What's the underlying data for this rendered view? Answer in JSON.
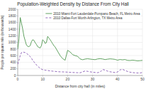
{
  "chart_data": {
    "type": "line",
    "title": "Population-Weighted Density by Distance From City Hall",
    "x_label": "Distance from city hall (in miles)",
    "y_label": "People per square mile (in thousands)",
    "xlim": [
      0,
      50
    ],
    "ylim": [
      0,
      2000
    ],
    "xticks": [
      0,
      10,
      20,
      30,
      40,
      50
    ],
    "yticks": [
      0,
      200,
      400,
      600,
      800,
      1000,
      1200,
      1400,
      1600,
      1800,
      2000
    ],
    "grid": true,
    "legend": "upper right",
    "series": [
      {
        "name": "2010 Miami-Fort Lauderdale-Pompano Beach, FL Metro Area",
        "color": "#3a8a3a",
        "line_style": "solid",
        "x": [
          0,
          0.5,
          1,
          1.5,
          2,
          2.5,
          3,
          3.5,
          4,
          4.5,
          5,
          5.5,
          6,
          6.5,
          7,
          7.5,
          8,
          8.5,
          9,
          9.5,
          10,
          10.5,
          11,
          11.5,
          12,
          12.5,
          13,
          13.5,
          14,
          14.5,
          15,
          16,
          17,
          18,
          19,
          20,
          21,
          22,
          23,
          24,
          25,
          26,
          27,
          28,
          29,
          30,
          31,
          32,
          33,
          34,
          35,
          36,
          37,
          38,
          39,
          40,
          41,
          42,
          43,
          44,
          45,
          46,
          47,
          48,
          49,
          50
        ],
        "values": [
          800,
          1100,
          1750,
          1580,
          1400,
          1180,
          1050,
          920,
          880,
          870,
          900,
          1020,
          1080,
          1060,
          990,
          940,
          870,
          850,
          830,
          900,
          1080,
          1040,
          970,
          990,
          1180,
          1130,
          1080,
          1020,
          960,
          900,
          860,
          730,
          600,
          510,
          460,
          760,
          710,
          630,
          600,
          580,
          500,
          475,
          495,
          505,
          495,
          485,
          478,
          498,
          508,
          498,
          480,
          492,
          502,
          496,
          486,
          462,
          482,
          472,
          482,
          456,
          452,
          462,
          454,
          442,
          448,
          455
        ]
      },
      {
        "name": "2010 Dallas-Fort Worth-Arlington, TX Metro Area",
        "color": "#7744aa",
        "line_style": "dashed",
        "x": [
          0,
          0.5,
          1,
          1.5,
          2,
          2.5,
          3,
          3.5,
          4,
          4.5,
          5,
          5.5,
          6,
          6.5,
          7,
          7.5,
          8,
          8.5,
          9,
          9.5,
          10,
          11,
          12,
          13,
          14,
          15,
          16,
          17,
          18,
          19,
          20,
          21,
          22,
          23,
          24,
          25,
          26,
          27,
          28,
          29,
          30,
          31,
          32,
          33,
          34,
          35,
          36,
          37,
          38,
          39,
          40,
          41,
          42,
          43,
          44,
          45,
          46,
          47,
          48,
          49,
          50
        ],
        "values": [
          340,
          460,
          600,
          690,
          710,
          700,
          690,
          670,
          640,
          610,
          570,
          520,
          460,
          410,
          370,
          320,
          280,
          248,
          218,
          194,
          175,
          160,
          150,
          140,
          130,
          123,
          115,
          110,
          108,
          106,
          100,
          95,
          90,
          88,
          84,
          80,
          110,
          135,
          125,
          110,
          100,
          90,
          85,
          100,
          180,
          165,
          132,
          112,
          100,
          88,
          105,
          168,
          186,
          152,
          122,
          100,
          88,
          80,
          76,
          74,
          90
        ]
      }
    ]
  }
}
